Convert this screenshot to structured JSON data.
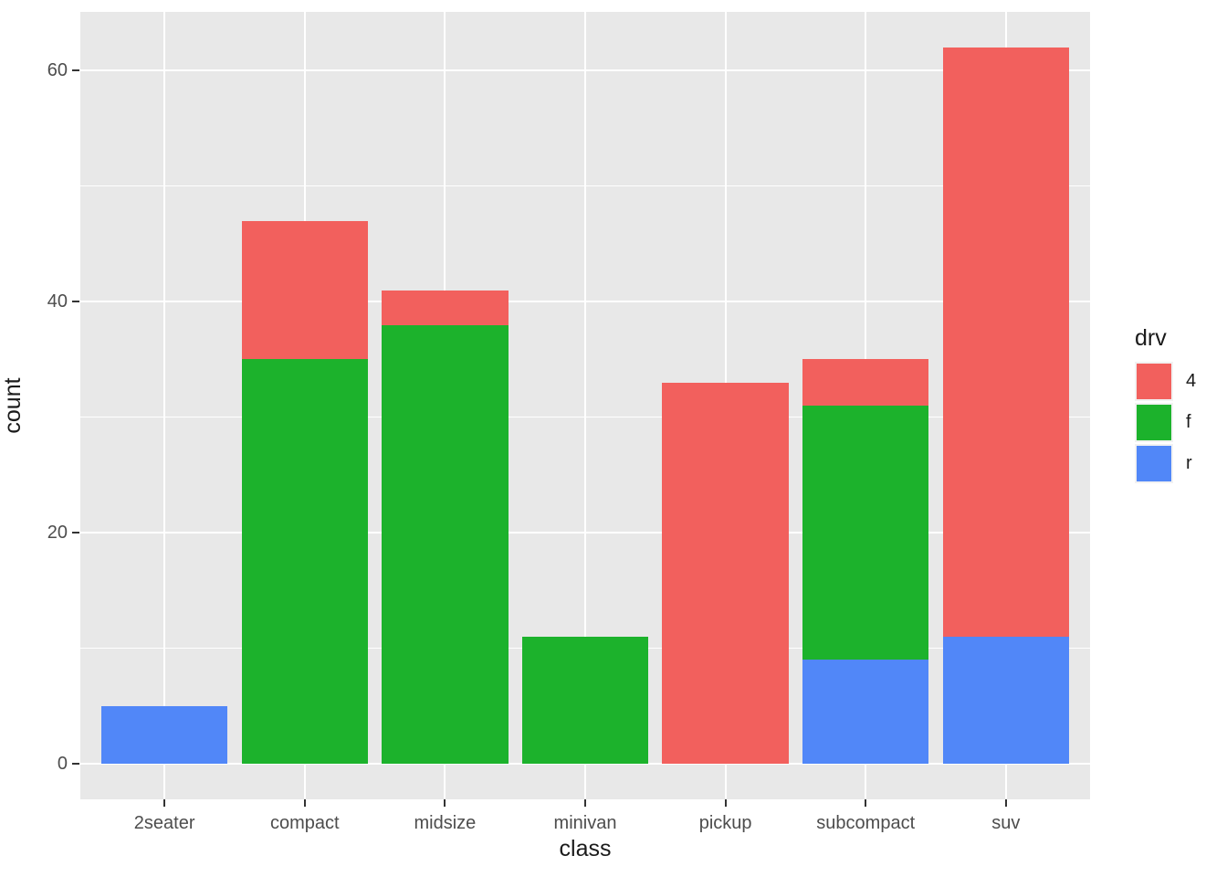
{
  "figure": {
    "background": "#FFFFFF",
    "panel_background": "#E8E8E8",
    "gridline_color": "#FFFFFF",
    "axis_text_color": "#4D4D4D",
    "axis_title_color": "#1A1A1A",
    "tick_mark_color": "#333333",
    "legend_key_background": "#F2F2F2"
  },
  "chart_data": {
    "type": "bar",
    "stacked": true,
    "title": "",
    "xlabel": "class",
    "ylabel": "count",
    "categories": [
      "2seater",
      "compact",
      "midsize",
      "minivan",
      "pickup",
      "subcompact",
      "suv"
    ],
    "series": [
      {
        "name": "4",
        "color": "#F2605D",
        "values": [
          0,
          12,
          3,
          0,
          33,
          4,
          51
        ]
      },
      {
        "name": "f",
        "color": "#1CB22C",
        "values": [
          0,
          35,
          38,
          11,
          0,
          22,
          0
        ]
      },
      {
        "name": "r",
        "color": "#5187F8",
        "values": [
          5,
          0,
          0,
          0,
          0,
          9,
          11
        ]
      }
    ],
    "stack_order_bottom_to_top": [
      "r",
      "f",
      "4"
    ],
    "totals": [
      5,
      47,
      41,
      11,
      33,
      35,
      62
    ],
    "y_ticks": [
      0,
      20,
      40,
      60
    ],
    "y_minor_ticks": [
      10,
      30,
      50
    ],
    "ylim": [
      -3.1,
      65.1
    ],
    "grid": "on",
    "legend": {
      "title": "drv",
      "position": "right",
      "entries": [
        {
          "label": "4",
          "color": "#F2605D"
        },
        {
          "label": "f",
          "color": "#1CB22C"
        },
        {
          "label": "r",
          "color": "#5187F8"
        }
      ]
    }
  }
}
